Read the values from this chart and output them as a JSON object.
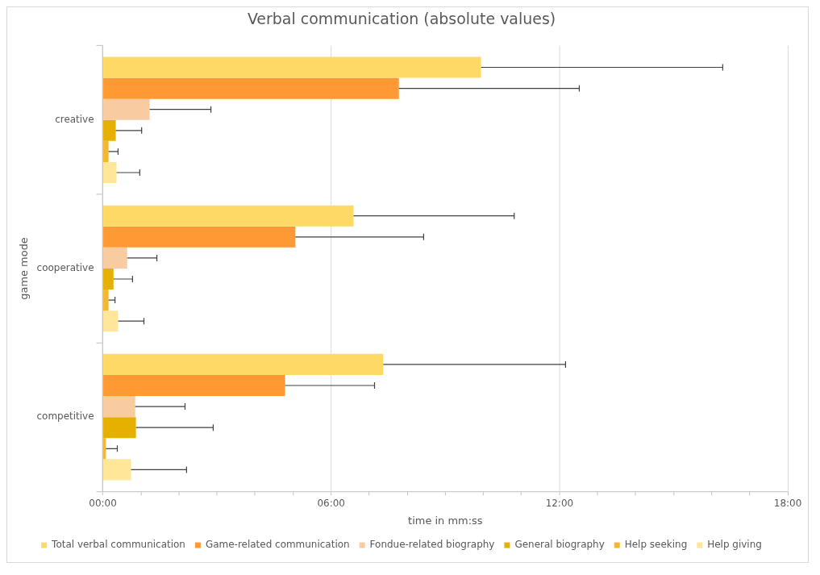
{
  "chart_data": {
    "type": "bar",
    "orientation": "horizontal",
    "title": "Verbal communication (absolute values)",
    "xlabel": "time in mm:ss",
    "ylabel": "game mode",
    "categories": [
      "creative",
      "cooperative",
      "competitive"
    ],
    "series": [
      {
        "name": "Total verbal communication",
        "color": "#ffd966",
        "values": [
          9.94,
          6.59,
          7.37
        ],
        "errors": [
          [
            9.94,
            16.29
          ],
          [
            6.59,
            10.81
          ],
          [
            7.37,
            12.16
          ]
        ]
      },
      {
        "name": "Game-related communication",
        "color": "#ff9933",
        "values": [
          7.78,
          5.06,
          4.79
        ],
        "errors": [
          [
            7.78,
            12.52
          ],
          [
            5.06,
            8.43
          ],
          [
            4.79,
            7.14
          ]
        ]
      },
      {
        "name": "Fondue-related biography",
        "color": "#f8cba0",
        "values": [
          1.23,
          0.64,
          0.85
        ],
        "errors": [
          [
            1.23,
            2.84
          ],
          [
            0.64,
            1.42
          ],
          [
            0.85,
            2.16
          ]
        ]
      },
      {
        "name": "General biography",
        "color": "#e6b000",
        "values": [
          0.34,
          0.28,
          0.87
        ],
        "errors": [
          [
            0.34,
            1.02
          ],
          [
            0.28,
            0.78
          ],
          [
            0.87,
            2.9
          ]
        ]
      },
      {
        "name": "Help seeking",
        "color": "#f4b731",
        "values": [
          0.15,
          0.15,
          0.08
        ],
        "errors": [
          [
            0.15,
            0.4
          ],
          [
            0.15,
            0.32
          ],
          [
            0.08,
            0.38
          ]
        ]
      },
      {
        "name": "Help giving",
        "color": "#ffe699",
        "values": [
          0.36,
          0.4,
          0.74
        ],
        "errors": [
          [
            0.36,
            0.97
          ],
          [
            0.4,
            1.08
          ],
          [
            0.74,
            2.2
          ]
        ]
      }
    ],
    "xlim": [
      0,
      18
    ],
    "xticks": [
      {
        "value": 0,
        "label": "00:00"
      },
      {
        "value": 1,
        "label": null
      },
      {
        "value": 2,
        "label": null
      },
      {
        "value": 3,
        "label": null
      },
      {
        "value": 4,
        "label": null
      },
      {
        "value": 5,
        "label": null
      },
      {
        "value": 6,
        "label": "06:00"
      },
      {
        "value": 7,
        "label": null
      },
      {
        "value": 8,
        "label": null
      },
      {
        "value": 9,
        "label": null
      },
      {
        "value": 10,
        "label": null
      },
      {
        "value": 11,
        "label": null
      },
      {
        "value": 12,
        "label": "12:00"
      },
      {
        "value": 13,
        "label": null
      },
      {
        "value": 14,
        "label": null
      },
      {
        "value": 15,
        "label": null
      },
      {
        "value": 16,
        "label": null
      },
      {
        "value": 17,
        "label": null
      },
      {
        "value": 18,
        "label": "18:00"
      }
    ],
    "grid": "x",
    "legend": "bottom"
  }
}
